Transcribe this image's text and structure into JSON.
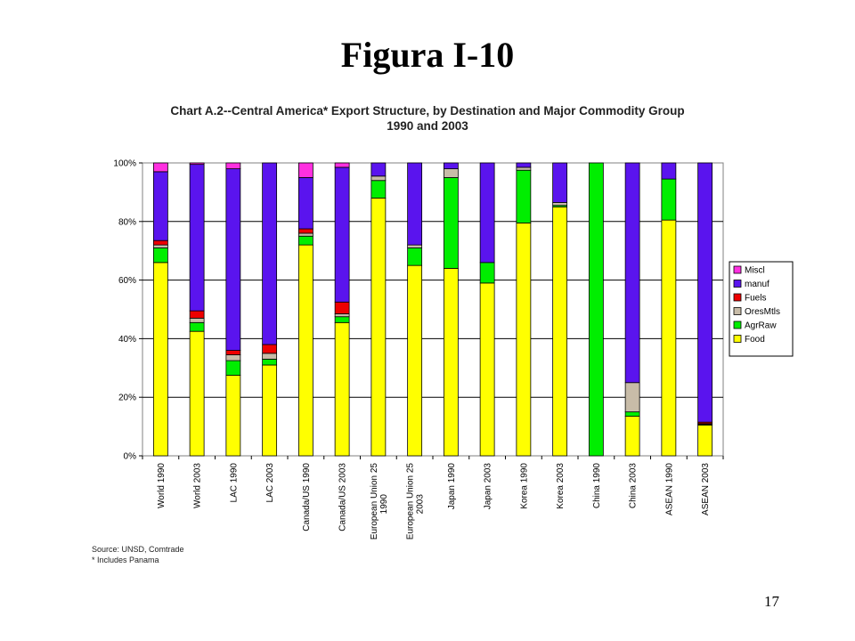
{
  "slide": {
    "title": "Figura I-10",
    "page_number": "17"
  },
  "footnotes": {
    "source": "Source:  UNSD, Comtrade",
    "note": "* Includes Panama"
  },
  "chart_data": {
    "type": "bar",
    "stacked": true,
    "title": "Chart A.2--Central America* Export Structure, by Destination and Major Commodity Group",
    "subtitle": "1990 and 2003",
    "xlabel": "",
    "ylabel": "",
    "ylim": [
      0,
      100
    ],
    "y_ticks": [
      "0%",
      "20%",
      "40%",
      "60%",
      "80%",
      "100%"
    ],
    "grid": true,
    "legend_position": "right",
    "categories": [
      [
        "World 1990"
      ],
      [
        "World 2003"
      ],
      [
        "LAC 1990"
      ],
      [
        "LAC 2003"
      ],
      [
        "Canada/US 1990"
      ],
      [
        "Canada/US 2003"
      ],
      [
        "European Union 25",
        "1990"
      ],
      [
        "European Union 25",
        "2003"
      ],
      [
        "Japan 1990"
      ],
      [
        "Japan 2003"
      ],
      [
        "Korea 1990"
      ],
      [
        "Korea 2003"
      ],
      [
        "China 1990"
      ],
      [
        "China 2003"
      ],
      [
        "ASEAN 1990"
      ],
      [
        "ASEAN 2003"
      ]
    ],
    "series": [
      {
        "name": "Food",
        "color": "#ffff00",
        "values": [
          66,
          42.5,
          27.5,
          31,
          72,
          45.5,
          88,
          65,
          64,
          59,
          79.5,
          85,
          0,
          13.5,
          80.5,
          10.5
        ]
      },
      {
        "name": "AgrRaw",
        "color": "#00ee00",
        "values": [
          5,
          3,
          5,
          2,
          3,
          2,
          6,
          6,
          31,
          7,
          18,
          0.5,
          100,
          1.5,
          14,
          0.3
        ]
      },
      {
        "name": "OresMtls",
        "color": "#c8bca8",
        "values": [
          1,
          1.5,
          2,
          2,
          1,
          1,
          1.5,
          1,
          3,
          0,
          1,
          1,
          0,
          10,
          0,
          0.2
        ]
      },
      {
        "name": "Fuels",
        "color": "#ee0000",
        "values": [
          1.5,
          2.5,
          1.5,
          3,
          1.5,
          4,
          0,
          0,
          0,
          0,
          0,
          0,
          0,
          0,
          0,
          0.5
        ]
      },
      {
        "name": "manuf",
        "color": "#5a14ee",
        "values": [
          23.5,
          50,
          62,
          62,
          17.5,
          46,
          4.5,
          28,
          2,
          34,
          1.5,
          13.5,
          0,
          75,
          5.5,
          88.5
        ]
      },
      {
        "name": "Miscl",
        "color": "#ff30e0",
        "values": [
          3,
          0.5,
          2,
          0,
          5,
          1.5,
          0,
          0,
          0,
          0,
          0,
          0,
          0,
          0,
          0,
          0
        ]
      }
    ]
  }
}
